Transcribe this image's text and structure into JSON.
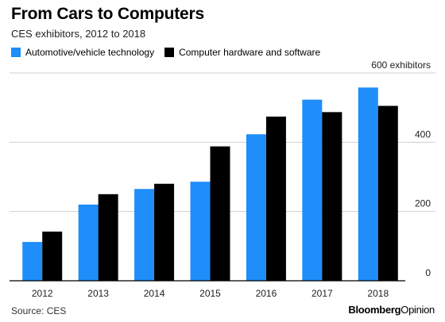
{
  "header": {
    "title": "From Cars to Computers",
    "subtitle": "CES exhibitors, 2012 to 2018"
  },
  "colors": {
    "automotive": "#1f8efa",
    "computer": "#000000",
    "grid": "#d0d0d0",
    "baseline": "#000000"
  },
  "chart_data": {
    "type": "bar",
    "categories": [
      "2012",
      "2013",
      "2014",
      "2015",
      "2016",
      "2017",
      "2018"
    ],
    "series": [
      {
        "name": "Automotive/vehicle technology",
        "values": [
          112,
          220,
          265,
          286,
          423,
          523,
          558
        ]
      },
      {
        "name": "Computer hardware and software",
        "values": [
          142,
          250,
          280,
          388,
          474,
          487,
          505
        ]
      }
    ],
    "y_ticks": [
      {
        "value": 0,
        "label": "0"
      },
      {
        "value": 200,
        "label": "200"
      },
      {
        "value": 400,
        "label": "400"
      },
      {
        "value": 600,
        "label": "600 exhibitors"
      }
    ],
    "ylim": [
      0,
      600
    ],
    "grid": true,
    "legend_position": "top-left"
  },
  "footer": {
    "source": "Source: CES",
    "brand_part1": "Bloomberg",
    "brand_part2": "Opinion"
  }
}
